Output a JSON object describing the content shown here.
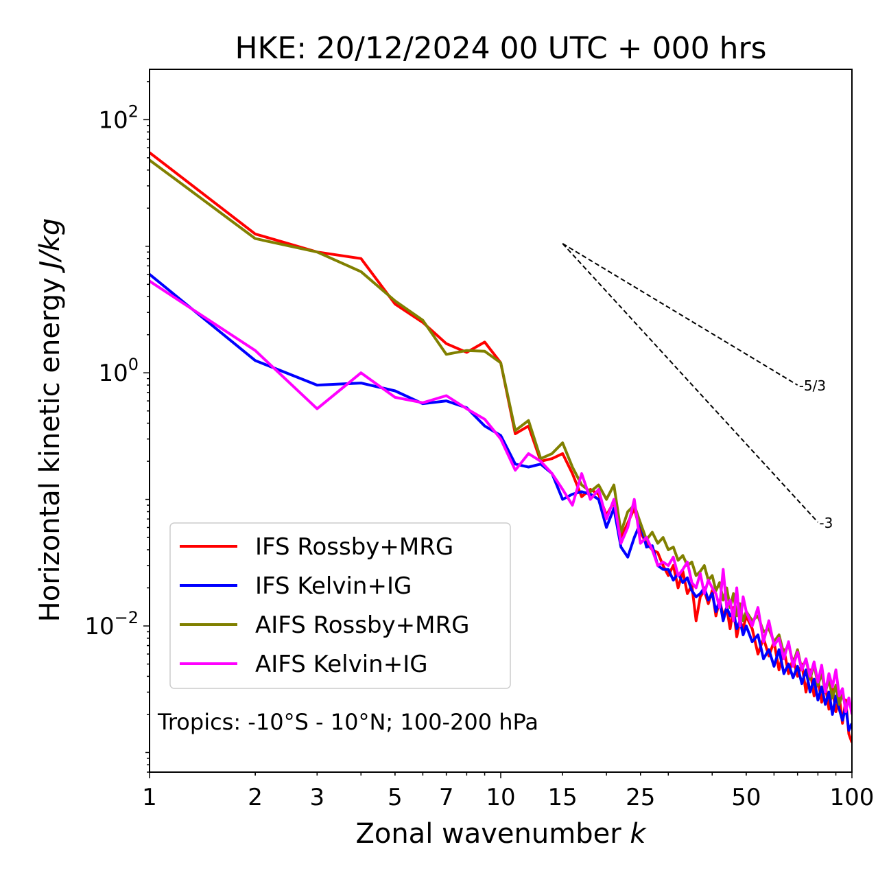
{
  "chart_data": {
    "type": "line",
    "title": "HKE: 20/12/2024 00 UTC + 000 hrs",
    "xlabel": "Zonal wavenumber k",
    "ylabel": "Horizontal kinetic energy J/kg",
    "xscale": "log",
    "yscale": "log",
    "xlim": [
      1,
      100
    ],
    "ylim": [
      0.0007,
      250
    ],
    "xticks": [
      {
        "value": 1,
        "label": "1"
      },
      {
        "value": 2,
        "label": "2"
      },
      {
        "value": 3,
        "label": "3"
      },
      {
        "value": 5,
        "label": "5"
      },
      {
        "value": 7,
        "label": "7"
      },
      {
        "value": 10,
        "label": "10"
      },
      {
        "value": 15,
        "label": "15"
      },
      {
        "value": 25,
        "label": "25"
      },
      {
        "value": 50,
        "label": "50"
      },
      {
        "value": 100,
        "label": "100"
      }
    ],
    "yticks": [
      {
        "value": 0.01,
        "base": "10",
        "exp": "−2"
      },
      {
        "value": 1,
        "base": "10",
        "exp": "0"
      },
      {
        "value": 100,
        "base": "10",
        "exp": "2"
      }
    ],
    "annotation": "Tropics: -10°S - 10°N; 100-200 hPa",
    "reference_slopes": [
      {
        "label": "-5/3",
        "x": [
          15,
          70
        ],
        "y": [
          10.5,
          0.8
        ]
      },
      {
        "label": "-3",
        "x": [
          15,
          80
        ],
        "y": [
          10.5,
          0.066
        ]
      }
    ],
    "legend_position": "lower-left",
    "series": [
      {
        "name": "IFS Rossby+MRG",
        "color": "#ff0000",
        "x": [
          1,
          2,
          3,
          4,
          5,
          6,
          7,
          8,
          9,
          10,
          11,
          12,
          13,
          14,
          15,
          16,
          17,
          18,
          19,
          20,
          21,
          22,
          23,
          24,
          25,
          26,
          27,
          28,
          29,
          30,
          31,
          32,
          33,
          34,
          35,
          36,
          37,
          38,
          39,
          40,
          41,
          42,
          43,
          44,
          45,
          46,
          47,
          48,
          49,
          50,
          52,
          54,
          56,
          58,
          60,
          62,
          64,
          66,
          68,
          70,
          72,
          74,
          76,
          78,
          80,
          82,
          84,
          86,
          88,
          90,
          92,
          94,
          96,
          98,
          100
        ],
        "values": [
          55,
          12.5,
          9.0,
          8.0,
          3.5,
          2.5,
          1.7,
          1.45,
          1.75,
          1.2,
          0.33,
          0.38,
          0.2,
          0.21,
          0.23,
          0.16,
          0.105,
          0.12,
          0.11,
          0.075,
          0.095,
          0.05,
          0.065,
          0.085,
          0.055,
          0.045,
          0.04,
          0.038,
          0.03,
          0.025,
          0.03,
          0.02,
          0.027,
          0.018,
          0.021,
          0.011,
          0.017,
          0.019,
          0.015,
          0.019,
          0.012,
          0.016,
          0.012,
          0.014,
          0.0095,
          0.014,
          0.0082,
          0.011,
          0.0095,
          0.012,
          0.0095,
          0.006,
          0.008,
          0.0058,
          0.0075,
          0.0045,
          0.0065,
          0.0042,
          0.0055,
          0.004,
          0.005,
          0.003,
          0.0045,
          0.0028,
          0.0038,
          0.0025,
          0.0034,
          0.0022,
          0.0032,
          0.0021,
          0.0028,
          0.0017,
          0.0026,
          0.0014,
          0.0012
        ]
      },
      {
        "name": "IFS Kelvin+IG",
        "color": "#0000ff",
        "x": [
          1,
          2,
          3,
          4,
          5,
          6,
          7,
          8,
          9,
          10,
          11,
          12,
          13,
          14,
          15,
          16,
          17,
          18,
          19,
          20,
          21,
          22,
          23,
          24,
          25,
          26,
          27,
          28,
          29,
          30,
          31,
          32,
          33,
          34,
          35,
          36,
          37,
          38,
          39,
          40,
          41,
          42,
          43,
          44,
          45,
          46,
          47,
          48,
          49,
          50,
          52,
          54,
          56,
          58,
          60,
          62,
          64,
          66,
          68,
          70,
          72,
          74,
          76,
          78,
          80,
          82,
          84,
          86,
          88,
          90,
          92,
          94,
          96,
          98,
          100
        ],
        "values": [
          6.0,
          1.25,
          0.8,
          0.83,
          0.72,
          0.57,
          0.6,
          0.53,
          0.38,
          0.32,
          0.19,
          0.18,
          0.19,
          0.16,
          0.1,
          0.11,
          0.115,
          0.11,
          0.1,
          0.06,
          0.085,
          0.042,
          0.035,
          0.05,
          0.065,
          0.042,
          0.043,
          0.03,
          0.028,
          0.028,
          0.023,
          0.026,
          0.022,
          0.024,
          0.019,
          0.017,
          0.018,
          0.02,
          0.016,
          0.018,
          0.013,
          0.016,
          0.011,
          0.014,
          0.012,
          0.013,
          0.0095,
          0.011,
          0.0085,
          0.01,
          0.0075,
          0.0085,
          0.0055,
          0.0065,
          0.0048,
          0.0065,
          0.0042,
          0.005,
          0.0039,
          0.0048,
          0.0035,
          0.0045,
          0.003,
          0.0038,
          0.0026,
          0.0033,
          0.0024,
          0.003,
          0.002,
          0.0028,
          0.0022,
          0.0018,
          0.0023,
          0.0015,
          0.0017
        ]
      },
      {
        "name": "AIFS Rossby+MRG",
        "color": "#808000",
        "x": [
          1,
          2,
          3,
          4,
          5,
          6,
          7,
          8,
          9,
          10,
          11,
          12,
          13,
          14,
          15,
          16,
          17,
          18,
          19,
          20,
          21,
          22,
          23,
          24,
          25,
          26,
          27,
          28,
          29,
          30,
          31,
          32,
          33,
          34,
          35,
          36,
          37,
          38,
          39,
          40,
          41,
          42,
          43,
          44,
          45,
          46,
          47,
          48,
          49,
          50,
          52,
          54,
          56,
          58,
          60,
          62,
          64,
          66,
          68,
          70,
          72,
          74,
          76,
          78,
          80,
          82,
          84,
          86,
          88,
          90,
          92,
          94,
          96,
          98,
          100
        ],
        "values": [
          48,
          11.5,
          9.0,
          6.3,
          3.7,
          2.6,
          1.4,
          1.5,
          1.48,
          1.2,
          0.35,
          0.42,
          0.21,
          0.23,
          0.28,
          0.18,
          0.13,
          0.115,
          0.13,
          0.1,
          0.13,
          0.055,
          0.08,
          0.09,
          0.065,
          0.048,
          0.055,
          0.045,
          0.05,
          0.04,
          0.042,
          0.033,
          0.036,
          0.03,
          0.032,
          0.025,
          0.027,
          0.03,
          0.023,
          0.025,
          0.019,
          0.022,
          0.016,
          0.02,
          0.014,
          0.018,
          0.012,
          0.015,
          0.011,
          0.013,
          0.011,
          0.012,
          0.009,
          0.0095,
          0.0075,
          0.0085,
          0.006,
          0.0072,
          0.005,
          0.0065,
          0.0045,
          0.0055,
          0.0038,
          0.005,
          0.0034,
          0.0042,
          0.003,
          0.0038,
          0.0027,
          0.0034,
          0.0024,
          0.0029,
          0.0023,
          0.0026,
          0.0021
        ]
      },
      {
        "name": "AIFS Kelvin+IG",
        "color": "#ff00ff",
        "x": [
          1,
          2,
          3,
          4,
          5,
          6,
          7,
          8,
          9,
          10,
          11,
          12,
          13,
          14,
          15,
          16,
          17,
          18,
          19,
          20,
          21,
          22,
          23,
          24,
          25,
          26,
          27,
          28,
          29,
          30,
          31,
          32,
          33,
          34,
          35,
          36,
          37,
          38,
          39,
          40,
          41,
          42,
          43,
          44,
          45,
          46,
          47,
          48,
          49,
          50,
          52,
          54,
          56,
          58,
          60,
          62,
          64,
          66,
          68,
          70,
          72,
          74,
          76,
          78,
          80,
          82,
          84,
          86,
          88,
          90,
          92,
          94,
          96,
          98,
          100
        ],
        "values": [
          5.3,
          1.5,
          0.52,
          1.0,
          0.64,
          0.58,
          0.66,
          0.52,
          0.43,
          0.3,
          0.17,
          0.23,
          0.2,
          0.16,
          0.12,
          0.09,
          0.16,
          0.1,
          0.12,
          0.07,
          0.1,
          0.045,
          0.06,
          0.1,
          0.045,
          0.05,
          0.04,
          0.03,
          0.032,
          0.03,
          0.035,
          0.025,
          0.028,
          0.032,
          0.022,
          0.02,
          0.026,
          0.018,
          0.023,
          0.02,
          0.018,
          0.014,
          0.028,
          0.014,
          0.016,
          0.011,
          0.02,
          0.01,
          0.017,
          0.013,
          0.01,
          0.014,
          0.0075,
          0.011,
          0.007,
          0.008,
          0.0055,
          0.0075,
          0.0048,
          0.0062,
          0.0045,
          0.0055,
          0.004,
          0.0052,
          0.0036,
          0.0049,
          0.003,
          0.0042,
          0.0033,
          0.0045,
          0.0028,
          0.0032,
          0.0021,
          0.0027,
          0.002
        ]
      }
    ]
  }
}
